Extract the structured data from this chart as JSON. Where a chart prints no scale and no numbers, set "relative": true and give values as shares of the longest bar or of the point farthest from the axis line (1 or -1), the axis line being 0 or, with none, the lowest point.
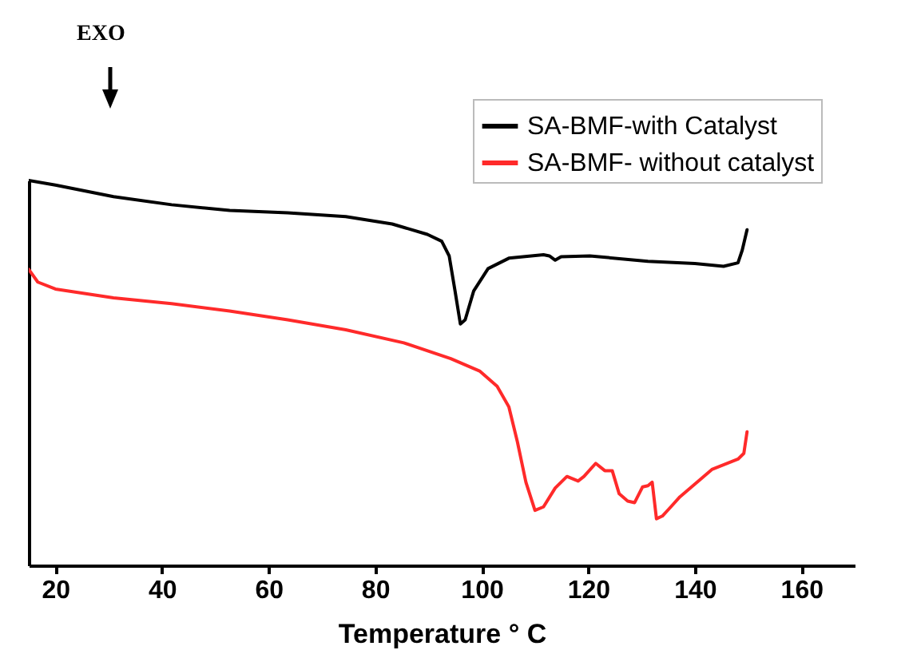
{
  "chart_data": {
    "type": "line",
    "relative": true,
    "xlabel": "Temperature ° C",
    "xlim": [
      15,
      170
    ],
    "xticks": [
      20,
      40,
      60,
      80,
      100,
      120,
      140,
      160
    ],
    "tick_labels": "x",
    "legend": "top right",
    "grid": false,
    "annotations": [
      "EXO"
    ],
    "series": [
      {
        "name": "SA-BMF-with Catalyst",
        "color": "#000000",
        "x": [
          15,
          20,
          30.9,
          41.8,
          52.7,
          63.6,
          74.5,
          83.2,
          89.8,
          92.5,
          93.9,
          95,
          96,
          96.9,
          98.5,
          101.2,
          105.1,
          111.6,
          112.7,
          113.8,
          114.9,
          120.3,
          131.2,
          140,
          145.4,
          148.1,
          148.9,
          149.8
        ],
        "values": [
          1,
          0.988,
          0.958,
          0.937,
          0.922,
          0.916,
          0.906,
          0.887,
          0.86,
          0.842,
          0.804,
          0.713,
          0.627,
          0.638,
          0.713,
          0.771,
          0.798,
          0.807,
          0.804,
          0.793,
          0.802,
          0.804,
          0.79,
          0.784,
          0.777,
          0.786,
          0.819,
          0.872
        ]
      },
      {
        "name": "SA-BMF- without catalyst",
        "color": "#ff2a2a",
        "x": [
          15,
          16.7,
          20,
          30.9,
          41.8,
          52.7,
          63.6,
          74.5,
          85.4,
          94.2,
          99.6,
          102.9,
          105.1,
          106.7,
          108.3,
          110,
          111.6,
          113.8,
          116,
          118.1,
          119.2,
          121.4,
          123.1,
          124.5,
          125.8,
          127.4,
          128.7,
          130.2,
          131.2,
          132,
          132.8,
          133.9,
          135.5,
          137.2,
          143.2,
          148.1,
          149.2,
          149.8
        ],
        "values": [
          0.769,
          0.736,
          0.718,
          0.695,
          0.68,
          0.661,
          0.638,
          0.612,
          0.578,
          0.537,
          0.505,
          0.465,
          0.412,
          0.321,
          0.216,
          0.143,
          0.152,
          0.201,
          0.231,
          0.219,
          0.231,
          0.265,
          0.246,
          0.246,
          0.186,
          0.167,
          0.163,
          0.204,
          0.207,
          0.216,
          0.121,
          0.128,
          0.152,
          0.178,
          0.249,
          0.276,
          0.291,
          0.347
        ]
      }
    ]
  }
}
